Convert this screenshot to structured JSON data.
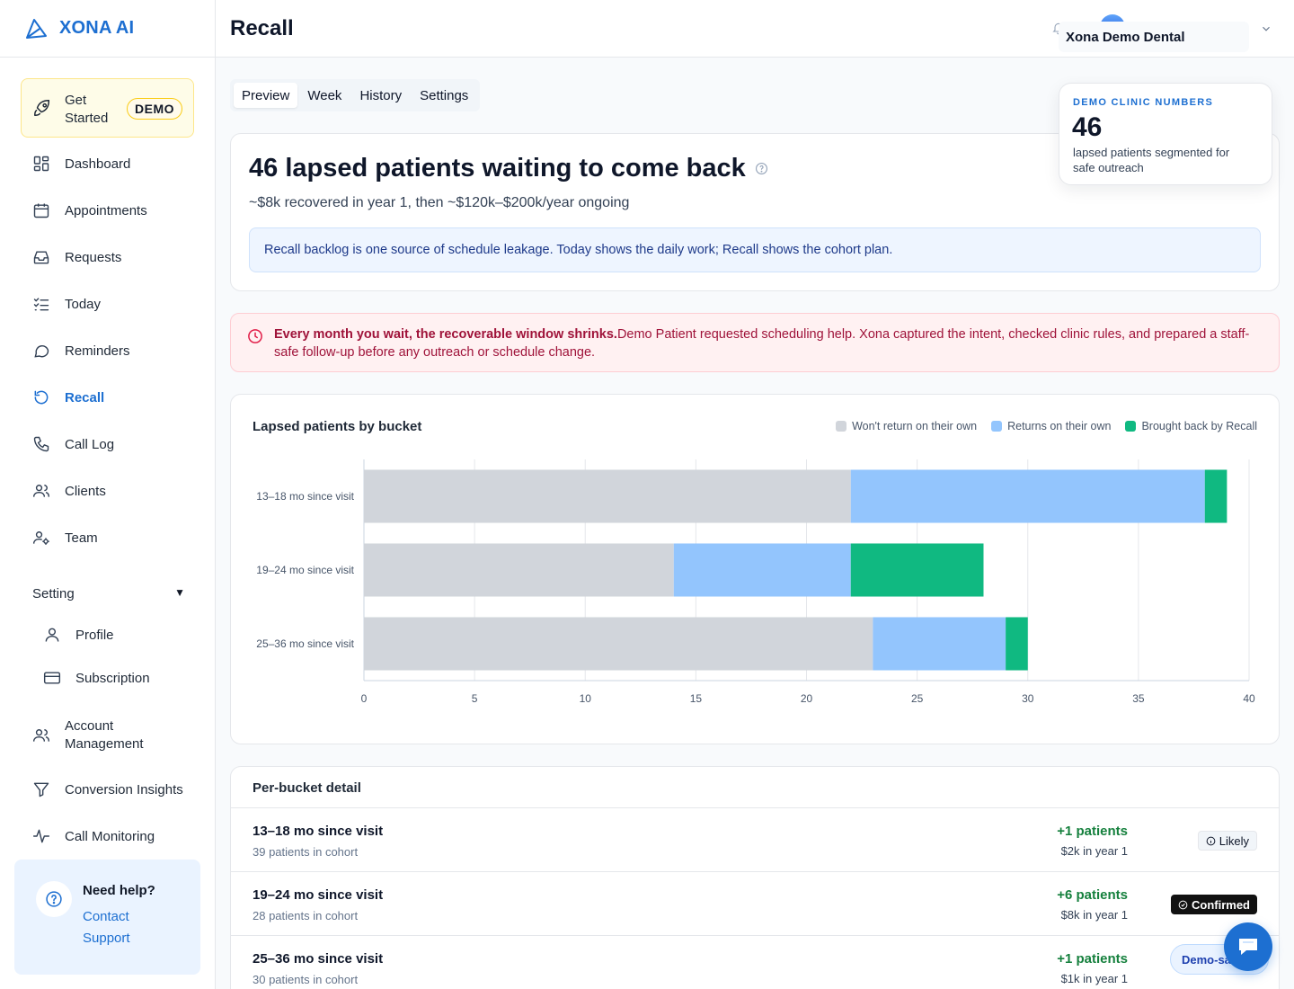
{
  "brand": {
    "name": "XONA AI",
    "logo_icon": "triangle-logo-icon"
  },
  "sidebar": {
    "get_started": {
      "label": "Get Started",
      "badge": "DEMO"
    },
    "items": [
      {
        "label": "Dashboard",
        "icon": "dashboard-icon"
      },
      {
        "label": "Appointments",
        "icon": "calendar-icon"
      },
      {
        "label": "Requests",
        "icon": "inbox-icon"
      },
      {
        "label": "Today",
        "icon": "checklist-icon"
      },
      {
        "label": "Reminders",
        "icon": "message-icon"
      },
      {
        "label": "Recall",
        "icon": "refresh-icon",
        "active": true
      },
      {
        "label": "Call Log",
        "icon": "phone-icon"
      },
      {
        "label": "Clients",
        "icon": "users-icon"
      },
      {
        "label": "Team",
        "icon": "team-icon"
      }
    ],
    "setting_section": {
      "label": "Setting",
      "caret": "▼"
    },
    "setting_items": [
      {
        "label": "Profile",
        "icon": "user-icon"
      },
      {
        "label": "Subscription",
        "icon": "credit-card-icon"
      }
    ],
    "bottom_items": [
      {
        "label": "Account Management",
        "icon": "users-icon"
      },
      {
        "label": "Conversion Insights",
        "icon": "filter-icon"
      },
      {
        "label": "Call Monitoring",
        "icon": "pulse-icon"
      }
    ],
    "help": {
      "title": "Need help?",
      "link": "Contact Support"
    }
  },
  "header": {
    "title": "Recall",
    "clinic": "Xona Demo Dental"
  },
  "tabs": [
    {
      "label": "Preview",
      "active": true
    },
    {
      "label": "Week"
    },
    {
      "label": "History"
    },
    {
      "label": "Settings"
    }
  ],
  "hero": {
    "title": "46 lapsed patients waiting to come back",
    "subtitle": "~$8k recovered in year 1, then ~$120k–$200k/year ongoing",
    "note": "Recall backlog is one source of schedule leakage. Today shows the daily work; Recall shows the cohort plan."
  },
  "demo_numbers": {
    "label": "DEMO CLINIC NUMBERS",
    "value": "46",
    "description": "lapsed patients segmented for safe outreach"
  },
  "alert": {
    "bold": "Every month you wait, the recoverable window shrinks.",
    "text": "Demo Patient requested scheduling help. Xona captured the intent, checked clinic rules, and prepared a staff-safe follow-up before any outreach or schedule change."
  },
  "chart_data": {
    "type": "bar",
    "orientation": "horizontal",
    "stacked": true,
    "title": "Lapsed patients by bucket",
    "categories": [
      "13–18 mo since visit",
      "19–24 mo since visit",
      "25–36 mo since visit"
    ],
    "series": [
      {
        "name": "Won't return on their own",
        "color": "#d1d5db",
        "values": [
          22,
          14,
          23
        ]
      },
      {
        "name": "Returns on their own",
        "color": "#93c5fd",
        "values": [
          16,
          8,
          6
        ]
      },
      {
        "name": "Brought back by Recall",
        "color": "#10b981",
        "values": [
          1,
          6,
          1
        ]
      }
    ],
    "xlim": [
      0,
      40
    ],
    "xticks": [
      0,
      5,
      10,
      15,
      20,
      25,
      30,
      35,
      40
    ],
    "grid": true,
    "legend": "top-right"
  },
  "detail": {
    "title": "Per-bucket detail",
    "rows": [
      {
        "name": "13–18 mo since visit",
        "cohort": "39 patients in cohort",
        "gain": "+1 patients",
        "year": "$2k in year 1",
        "badge": "Likely"
      },
      {
        "name": "19–24 mo since visit",
        "cohort": "28 patients in cohort",
        "gain": "+6 patients",
        "year": "$8k in year 1",
        "badge": "Confirmed"
      },
      {
        "name": "25–36 mo since visit",
        "cohort": "30 patients in cohort",
        "gain": "+1 patients",
        "year": "$1k in year 1",
        "badge": ""
      }
    ]
  },
  "floating": {
    "demo_pill": "Demo-sa",
    "chat_icon": "chat-icon"
  }
}
